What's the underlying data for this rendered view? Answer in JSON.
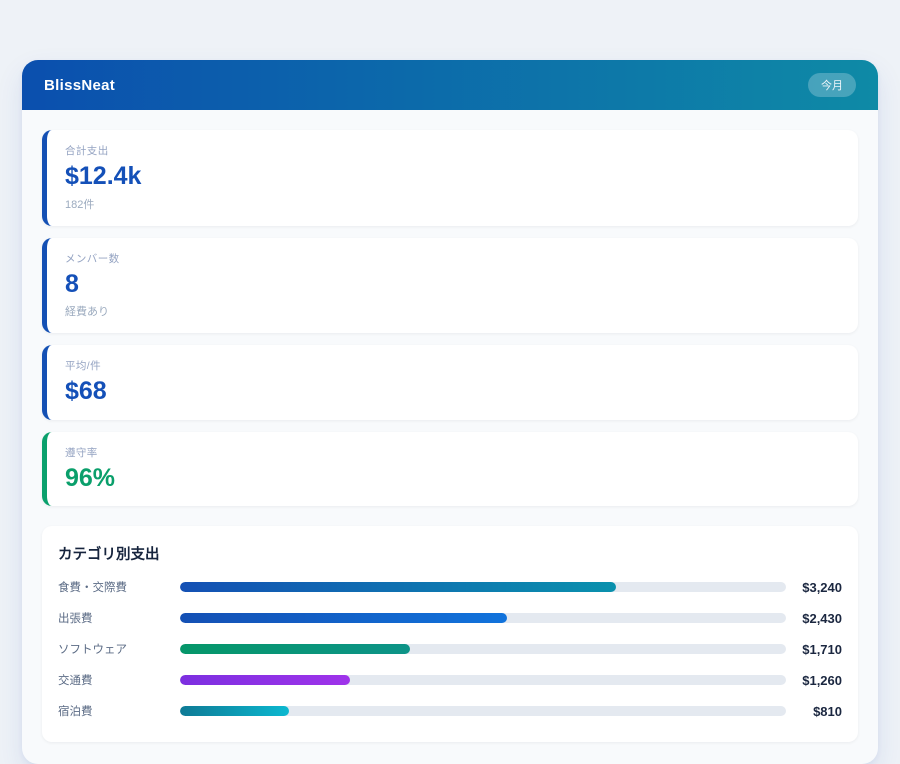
{
  "header": {
    "app_name": "BlissNeat",
    "period_badge": "今月"
  },
  "colors": {
    "header_gradient_start": "#0b4fae",
    "header_gradient_end": "#0e8aa6",
    "accent_blue": "#1450b4",
    "accent_green": "#0aa06c",
    "value_blue": "#1450b8",
    "value_green": "#0a9f6b"
  },
  "stats": [
    {
      "label": "合計支出",
      "value": "$12.4k",
      "sub": "182件",
      "accent": "blue"
    },
    {
      "label": "メンバー数",
      "value": "8",
      "sub": "経費あり",
      "accent": "blue"
    },
    {
      "label": "平均/件",
      "value": "$68",
      "sub": "",
      "accent": "blue"
    },
    {
      "label": "遵守率",
      "value": "96%",
      "sub": "",
      "accent": "green"
    }
  ],
  "category_section": {
    "title": "カテゴリ別支出",
    "max_scale": 4500,
    "rows": [
      {
        "label": "食費・交際費",
        "amount": "$3,240",
        "value": 3240,
        "percent": 72,
        "color_start": "#1450b4",
        "color_end": "#0a91ad"
      },
      {
        "label": "出張費",
        "amount": "$2,430",
        "value": 2430,
        "percent": 54,
        "color_start": "#1450b4",
        "color_end": "#1173dc"
      },
      {
        "label": "ソフトウェア",
        "amount": "$1,710",
        "value": 1710,
        "percent": 38,
        "color_start": "#059669",
        "color_end": "#0d9488"
      },
      {
        "label": "交通費",
        "amount": "$1,260",
        "value": 1260,
        "percent": 28,
        "color_start": "#7c2fe0",
        "color_end": "#9f33ea"
      },
      {
        "label": "宿泊費",
        "amount": "$810",
        "value": 810,
        "percent": 18,
        "color_start": "#0e7a95",
        "color_end": "#0cb8d0"
      }
    ]
  }
}
